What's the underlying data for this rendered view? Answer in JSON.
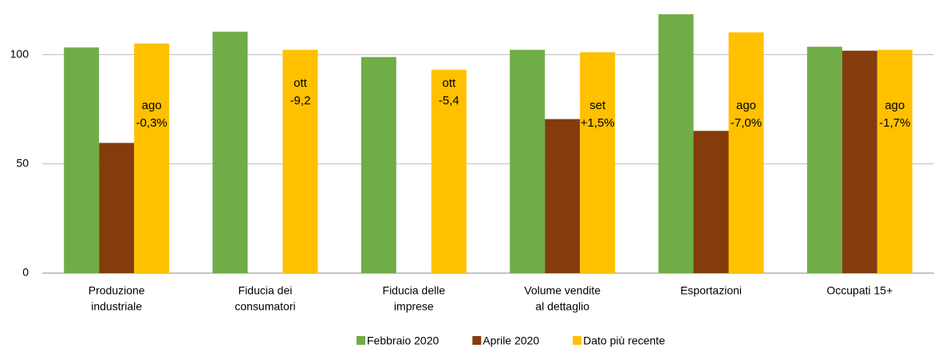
{
  "chart_data": {
    "type": "bar",
    "categories": [
      [
        "Produzione",
        "industriale"
      ],
      [
        "Fiducia dei",
        "consumatori"
      ],
      [
        "Fiducia delle",
        "imprese"
      ],
      [
        "Volume vendite",
        "al dettaglio"
      ],
      [
        "Esportazioni"
      ],
      [
        "Occupati 15+"
      ]
    ],
    "series": [
      {
        "name": "Febbraio 2020",
        "color": "#70ad47",
        "values": [
          103.3,
          110.5,
          98.9,
          102.2,
          118.5,
          103.6
        ]
      },
      {
        "name": "Aprile 2020",
        "color": "#843c0c",
        "values": [
          59.6,
          null,
          null,
          70.5,
          65.1,
          101.8
        ]
      },
      {
        "name": "Dato più recente",
        "color": "#ffc000",
        "values": [
          105.1,
          102.2,
          93.1,
          101.1,
          110.2,
          102.2
        ]
      }
    ],
    "annotations": [
      [
        "ago",
        "-0,3%"
      ],
      [
        "ott",
        "-9,2"
      ],
      [
        "ott",
        "-5,4"
      ],
      [
        "set",
        "+1,5%"
      ],
      [
        "ago",
        "-7,0%"
      ],
      [
        "ago",
        "-1,7%"
      ]
    ],
    "ylim": [
      0,
      125
    ],
    "yticks": [
      0,
      50,
      100
    ],
    "grid": true,
    "legend": "bottom"
  }
}
